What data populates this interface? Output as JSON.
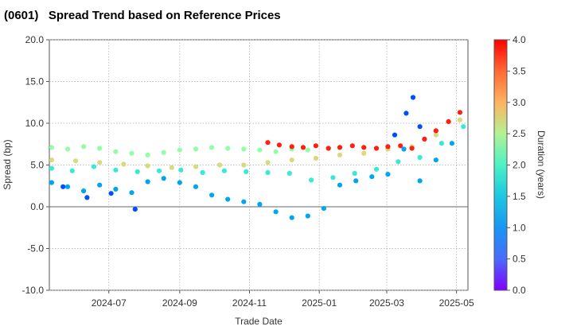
{
  "chart_data": {
    "type": "scatter",
    "title": "(0601)   Spread Trend based on Reference Prices",
    "xlabel": "Trade Date",
    "ylabel": "Spread (bp)",
    "xlim": [
      "2024-05-10",
      "2025-05-11"
    ],
    "ylim": [
      -10,
      20
    ],
    "x_ticks": [
      "2024-07",
      "2024-09",
      "2024-11",
      "2025-01",
      "2025-03",
      "2025-05"
    ],
    "y_ticks": [
      "20.0",
      "15.0",
      "10.0",
      "5.0",
      "0.0",
      "-5.0",
      "-10.0"
    ],
    "grid": true,
    "colorbar": {
      "label": "Duration (years)",
      "range": [
        0,
        4
      ],
      "ticks": [
        "4.0",
        "3.5",
        "3.0",
        "2.5",
        "2.0",
        "1.5",
        "1.0",
        "0.5",
        "0.0"
      ],
      "colormap": "rainbow"
    },
    "series": [
      {
        "points": [
          [
            "2024-05-12",
            7.1
          ],
          [
            "2024-05-26",
            6.9
          ],
          [
            "2024-06-09",
            7.2
          ],
          [
            "2024-06-23",
            7.0
          ],
          [
            "2024-07-07",
            6.6
          ],
          [
            "2024-07-21",
            6.4
          ],
          [
            "2024-08-04",
            6.2
          ],
          [
            "2024-08-18",
            6.5
          ],
          [
            "2024-09-01",
            6.8
          ],
          [
            "2024-09-15",
            6.9
          ],
          [
            "2024-09-29",
            7.1
          ],
          [
            "2024-10-13",
            7.0
          ],
          [
            "2024-10-27",
            6.9
          ],
          [
            "2024-11-10",
            6.8
          ],
          [
            "2024-11-24",
            6.6
          ],
          [
            "2024-12-08",
            6.9
          ],
          [
            "2024-12-22",
            6.8
          ]
        ],
        "duration": 2.15
      },
      {
        "points": [
          [
            "2024-05-12",
            5.6
          ],
          [
            "2024-06-02",
            5.5
          ],
          [
            "2024-06-23",
            5.3
          ],
          [
            "2024-07-14",
            5.1
          ],
          [
            "2024-08-04",
            4.9
          ],
          [
            "2024-08-25",
            4.7
          ],
          [
            "2024-09-15",
            4.8
          ],
          [
            "2024-10-06",
            5.0
          ],
          [
            "2024-10-27",
            5.0
          ],
          [
            "2024-11-17",
            5.3
          ],
          [
            "2024-12-08",
            5.6
          ],
          [
            "2024-12-29",
            5.8
          ],
          [
            "2025-01-19",
            6.2
          ],
          [
            "2025-02-09",
            6.4
          ],
          [
            "2025-03-02",
            6.9
          ],
          [
            "2025-03-23",
            7.2
          ],
          [
            "2025-04-13",
            8.6
          ],
          [
            "2025-05-04",
            10.4
          ]
        ],
        "duration": 2.7
      },
      {
        "points": [
          [
            "2024-11-17",
            7.7
          ],
          [
            "2024-11-27",
            7.4
          ],
          [
            "2024-12-08",
            7.2
          ],
          [
            "2024-12-18",
            7.1
          ],
          [
            "2024-12-29",
            7.3
          ],
          [
            "2025-01-09",
            7.0
          ],
          [
            "2025-01-19",
            7.1
          ],
          [
            "2025-01-30",
            7.3
          ],
          [
            "2025-02-09",
            7.1
          ],
          [
            "2025-02-20",
            7.0
          ],
          [
            "2025-03-02",
            7.2
          ],
          [
            "2025-03-13",
            7.3
          ],
          [
            "2025-03-23",
            7.0
          ],
          [
            "2025-04-03",
            8.1
          ],
          [
            "2025-04-13",
            9.1
          ],
          [
            "2025-04-24",
            10.2
          ],
          [
            "2025-05-04",
            11.3
          ]
        ],
        "duration": 3.85
      },
      {
        "points": [
          [
            "2024-05-12",
            4.6
          ],
          [
            "2024-05-30",
            4.3
          ],
          [
            "2024-06-18",
            4.8
          ],
          [
            "2024-07-07",
            4.4
          ],
          [
            "2024-07-26",
            4.2
          ],
          [
            "2024-08-14",
            4.3
          ],
          [
            "2024-09-02",
            4.4
          ],
          [
            "2024-09-21",
            4.1
          ],
          [
            "2024-10-10",
            4.3
          ],
          [
            "2024-10-29",
            4.2
          ],
          [
            "2024-11-17",
            4.1
          ],
          [
            "2024-12-06",
            4.0
          ],
          [
            "2024-12-25",
            3.2
          ],
          [
            "2025-01-13",
            3.5
          ],
          [
            "2025-02-01",
            4.0
          ],
          [
            "2025-02-20",
            4.5
          ],
          [
            "2025-03-11",
            5.4
          ],
          [
            "2025-03-30",
            5.9
          ],
          [
            "2025-04-18",
            7.6
          ],
          [
            "2025-05-07",
            9.6
          ]
        ],
        "duration": 1.45
      },
      {
        "points": [
          [
            "2024-05-12",
            2.9
          ],
          [
            "2024-05-26",
            2.4
          ],
          [
            "2024-06-09",
            1.9
          ],
          [
            "2024-06-23",
            2.6
          ],
          [
            "2024-07-07",
            2.1
          ],
          [
            "2024-07-21",
            1.7
          ],
          [
            "2024-08-04",
            3.0
          ],
          [
            "2024-08-18",
            3.4
          ],
          [
            "2024-09-01",
            2.9
          ],
          [
            "2024-09-15",
            2.4
          ],
          [
            "2024-09-29",
            1.4
          ],
          [
            "2024-10-13",
            0.9
          ],
          [
            "2024-10-27",
            0.6
          ],
          [
            "2024-11-10",
            0.3
          ],
          [
            "2024-11-24",
            -0.6
          ],
          [
            "2024-12-08",
            -1.3
          ],
          [
            "2024-12-22",
            -1.1
          ],
          [
            "2025-01-05",
            -0.2
          ],
          [
            "2025-01-19",
            2.6
          ],
          [
            "2025-02-02",
            3.1
          ],
          [
            "2025-02-16",
            3.6
          ],
          [
            "2025-03-02",
            3.9
          ],
          [
            "2025-03-16",
            6.9
          ],
          [
            "2025-03-30",
            3.1
          ],
          [
            "2025-04-13",
            5.6
          ],
          [
            "2025-04-27",
            7.6
          ]
        ],
        "duration": 0.9
      },
      {
        "points": [
          [
            "2024-05-22",
            2.4
          ],
          [
            "2024-06-12",
            1.1
          ],
          [
            "2024-07-03",
            1.6
          ],
          [
            "2024-07-24",
            -0.3
          ],
          [
            "2025-03-08",
            8.6
          ],
          [
            "2025-03-18",
            11.2
          ],
          [
            "2025-03-24",
            13.1
          ],
          [
            "2025-03-30",
            9.6
          ]
        ],
        "duration": 0.4
      }
    ]
  }
}
